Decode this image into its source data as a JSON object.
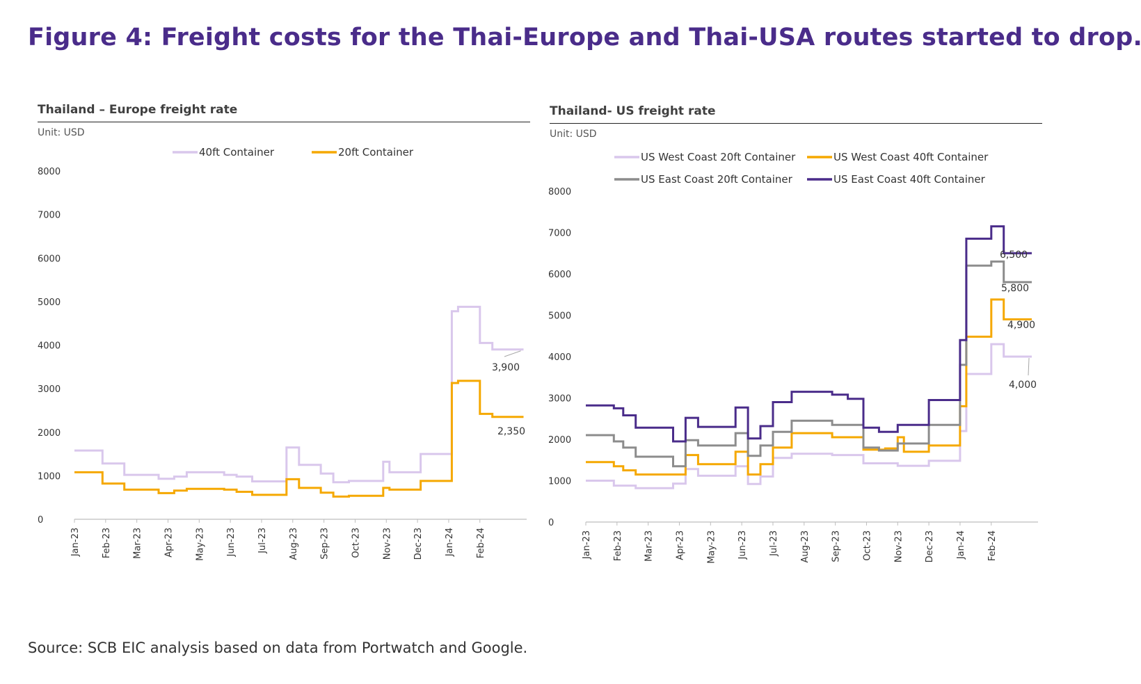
{
  "page": {
    "title": "Figure 4: Freight costs for the Thai-Europe and Thai-USA routes started to drop.",
    "source": "Source: SCB EIC analysis based on data from Portwatch and Google."
  },
  "chart_data": [
    {
      "type": "line",
      "title": "Thailand – Europe freight rate",
      "unit": "Unit: USD",
      "xlabel": "",
      "ylabel": "",
      "ylim": [
        0,
        8000
      ],
      "yticks": [
        0,
        1000,
        2000,
        3000,
        4000,
        5000,
        6000,
        7000,
        8000
      ],
      "categories": [
        "Jan-23",
        "Feb-23",
        "Mar-23",
        "Apr-23",
        "May-23",
        "Jun-23",
        "Jul-23",
        "Aug-23",
        "Sep-23",
        "Oct-23",
        "Nov-23",
        "Dec-23",
        "Jan-24",
        "Feb-24"
      ],
      "x_range": [
        0,
        14.5
      ],
      "legend_position": "top",
      "grid": false,
      "series": [
        {
          "name": "40ft Container",
          "color": "#d9c7ec",
          "steps": [
            [
              0,
              1580
            ],
            [
              0.9,
              1280
            ],
            [
              1.6,
              1020
            ],
            [
              2.7,
              930
            ],
            [
              3.2,
              980
            ],
            [
              3.6,
              1080
            ],
            [
              4.8,
              1020
            ],
            [
              5.2,
              980
            ],
            [
              5.7,
              870
            ],
            [
              6.8,
              1650
            ],
            [
              7.2,
              1250
            ],
            [
              7.9,
              1050
            ],
            [
              8.3,
              850
            ],
            [
              8.8,
              880
            ],
            [
              9.9,
              1320
            ],
            [
              10.1,
              1080
            ],
            [
              11.1,
              1500
            ],
            [
              12.1,
              4780
            ],
            [
              12.3,
              4880
            ],
            [
              13.0,
              4050
            ],
            [
              13.4,
              3900
            ]
          ],
          "end_x": 14.4,
          "end_label": "3,900"
        },
        {
          "name": "20ft Container",
          "color": "#f5a800",
          "steps": [
            [
              0,
              1080
            ],
            [
              0.9,
              820
            ],
            [
              1.6,
              680
            ],
            [
              2.7,
              600
            ],
            [
              3.2,
              660
            ],
            [
              3.6,
              700
            ],
            [
              4.8,
              680
            ],
            [
              5.2,
              630
            ],
            [
              5.7,
              560
            ],
            [
              6.8,
              920
            ],
            [
              7.2,
              720
            ],
            [
              7.9,
              610
            ],
            [
              8.3,
              520
            ],
            [
              8.8,
              540
            ],
            [
              9.9,
              720
            ],
            [
              10.1,
              680
            ],
            [
              11.1,
              880
            ],
            [
              12.1,
              3130
            ],
            [
              12.3,
              3180
            ],
            [
              13.0,
              2420
            ],
            [
              13.4,
              2350
            ]
          ],
          "end_x": 14.4,
          "end_label": "2,350"
        }
      ]
    },
    {
      "type": "line",
      "title": "Thailand- US freight rate",
      "unit": "Unit: USD",
      "xlabel": "",
      "ylabel": "",
      "ylim": [
        0,
        8000
      ],
      "yticks": [
        0,
        1000,
        2000,
        3000,
        4000,
        5000,
        6000,
        7000,
        8000
      ],
      "categories": [
        "Jan-23",
        "Feb-23",
        "Mar-23",
        "Apr-23",
        "May-23",
        "Jun-23",
        "Jul-23",
        "Aug-23",
        "Sep-23",
        "Oct-23",
        "Nov-23",
        "Dec-23",
        "Jan-24",
        "Feb-24"
      ],
      "x_range": [
        0,
        14.5
      ],
      "legend_position": "top",
      "grid": false,
      "series": [
        {
          "name": "US West Coast 20ft Container",
          "color": "#d9c7ec",
          "steps": [
            [
              0,
              1000
            ],
            [
              0.9,
              880
            ],
            [
              1.6,
              820
            ],
            [
              2.8,
              930
            ],
            [
              3.2,
              1280
            ],
            [
              3.6,
              1120
            ],
            [
              4.8,
              1350
            ],
            [
              5.2,
              920
            ],
            [
              5.6,
              1100
            ],
            [
              6.0,
              1550
            ],
            [
              6.6,
              1650
            ],
            [
              7.9,
              1620
            ],
            [
              8.9,
              1420
            ],
            [
              10.0,
              1360
            ],
            [
              11.0,
              1480
            ],
            [
              12.0,
              2200
            ],
            [
              12.2,
              3580
            ],
            [
              13.0,
              4300
            ],
            [
              13.4,
              4000
            ]
          ],
          "end_x": 14.3,
          "end_label": "4,000"
        },
        {
          "name": "US West Coast 40ft Container",
          "color": "#f5a800",
          "steps": [
            [
              0,
              1450
            ],
            [
              0.9,
              1350
            ],
            [
              1.2,
              1250
            ],
            [
              1.6,
              1150
            ],
            [
              3.2,
              1620
            ],
            [
              3.6,
              1400
            ],
            [
              4.8,
              1700
            ],
            [
              5.2,
              1150
            ],
            [
              5.6,
              1400
            ],
            [
              6.0,
              1800
            ],
            [
              6.6,
              2150
            ],
            [
              7.9,
              2050
            ],
            [
              8.9,
              1750
            ],
            [
              9.6,
              1780
            ],
            [
              10.0,
              2050
            ],
            [
              10.2,
              1700
            ],
            [
              11.0,
              1850
            ],
            [
              12.0,
              2800
            ],
            [
              12.2,
              4480
            ],
            [
              13.0,
              5380
            ],
            [
              13.4,
              4900
            ]
          ],
          "end_x": 14.3,
          "end_label": "4,900"
        },
        {
          "name": "US East Coast 20ft Container",
          "color": "#8c8c8c",
          "steps": [
            [
              0,
              2100
            ],
            [
              0.9,
              1950
            ],
            [
              1.2,
              1800
            ],
            [
              1.6,
              1580
            ],
            [
              2.8,
              1350
            ],
            [
              3.2,
              1980
            ],
            [
              3.6,
              1850
            ],
            [
              4.8,
              2150
            ],
            [
              5.2,
              1600
            ],
            [
              5.6,
              1850
            ],
            [
              6.0,
              2180
            ],
            [
              6.6,
              2450
            ],
            [
              7.9,
              2350
            ],
            [
              8.9,
              1800
            ],
            [
              9.4,
              1730
            ],
            [
              10.0,
              1900
            ],
            [
              11.0,
              2350
            ],
            [
              12.0,
              3800
            ],
            [
              12.2,
              6200
            ],
            [
              13.0,
              6300
            ],
            [
              13.4,
              5800
            ]
          ],
          "end_x": 14.3,
          "end_label": "5,800"
        },
        {
          "name": "US East Coast 40ft Container",
          "color": "#4a2c8a",
          "steps": [
            [
              0,
              2820
            ],
            [
              0.9,
              2750
            ],
            [
              1.2,
              2580
            ],
            [
              1.6,
              2280
            ],
            [
              2.8,
              1950
            ],
            [
              3.2,
              2520
            ],
            [
              3.6,
              2300
            ],
            [
              4.8,
              2770
            ],
            [
              5.2,
              2020
            ],
            [
              5.6,
              2320
            ],
            [
              6.0,
              2900
            ],
            [
              6.6,
              3150
            ],
            [
              7.9,
              3080
            ],
            [
              8.4,
              2980
            ],
            [
              8.9,
              2280
            ],
            [
              9.4,
              2180
            ],
            [
              10.0,
              2350
            ],
            [
              11.0,
              2950
            ],
            [
              12.0,
              4400
            ],
            [
              12.2,
              6850
            ],
            [
              13.0,
              7150
            ],
            [
              13.4,
              6500
            ]
          ],
          "end_x": 14.3,
          "end_label": "6,500"
        }
      ]
    }
  ]
}
